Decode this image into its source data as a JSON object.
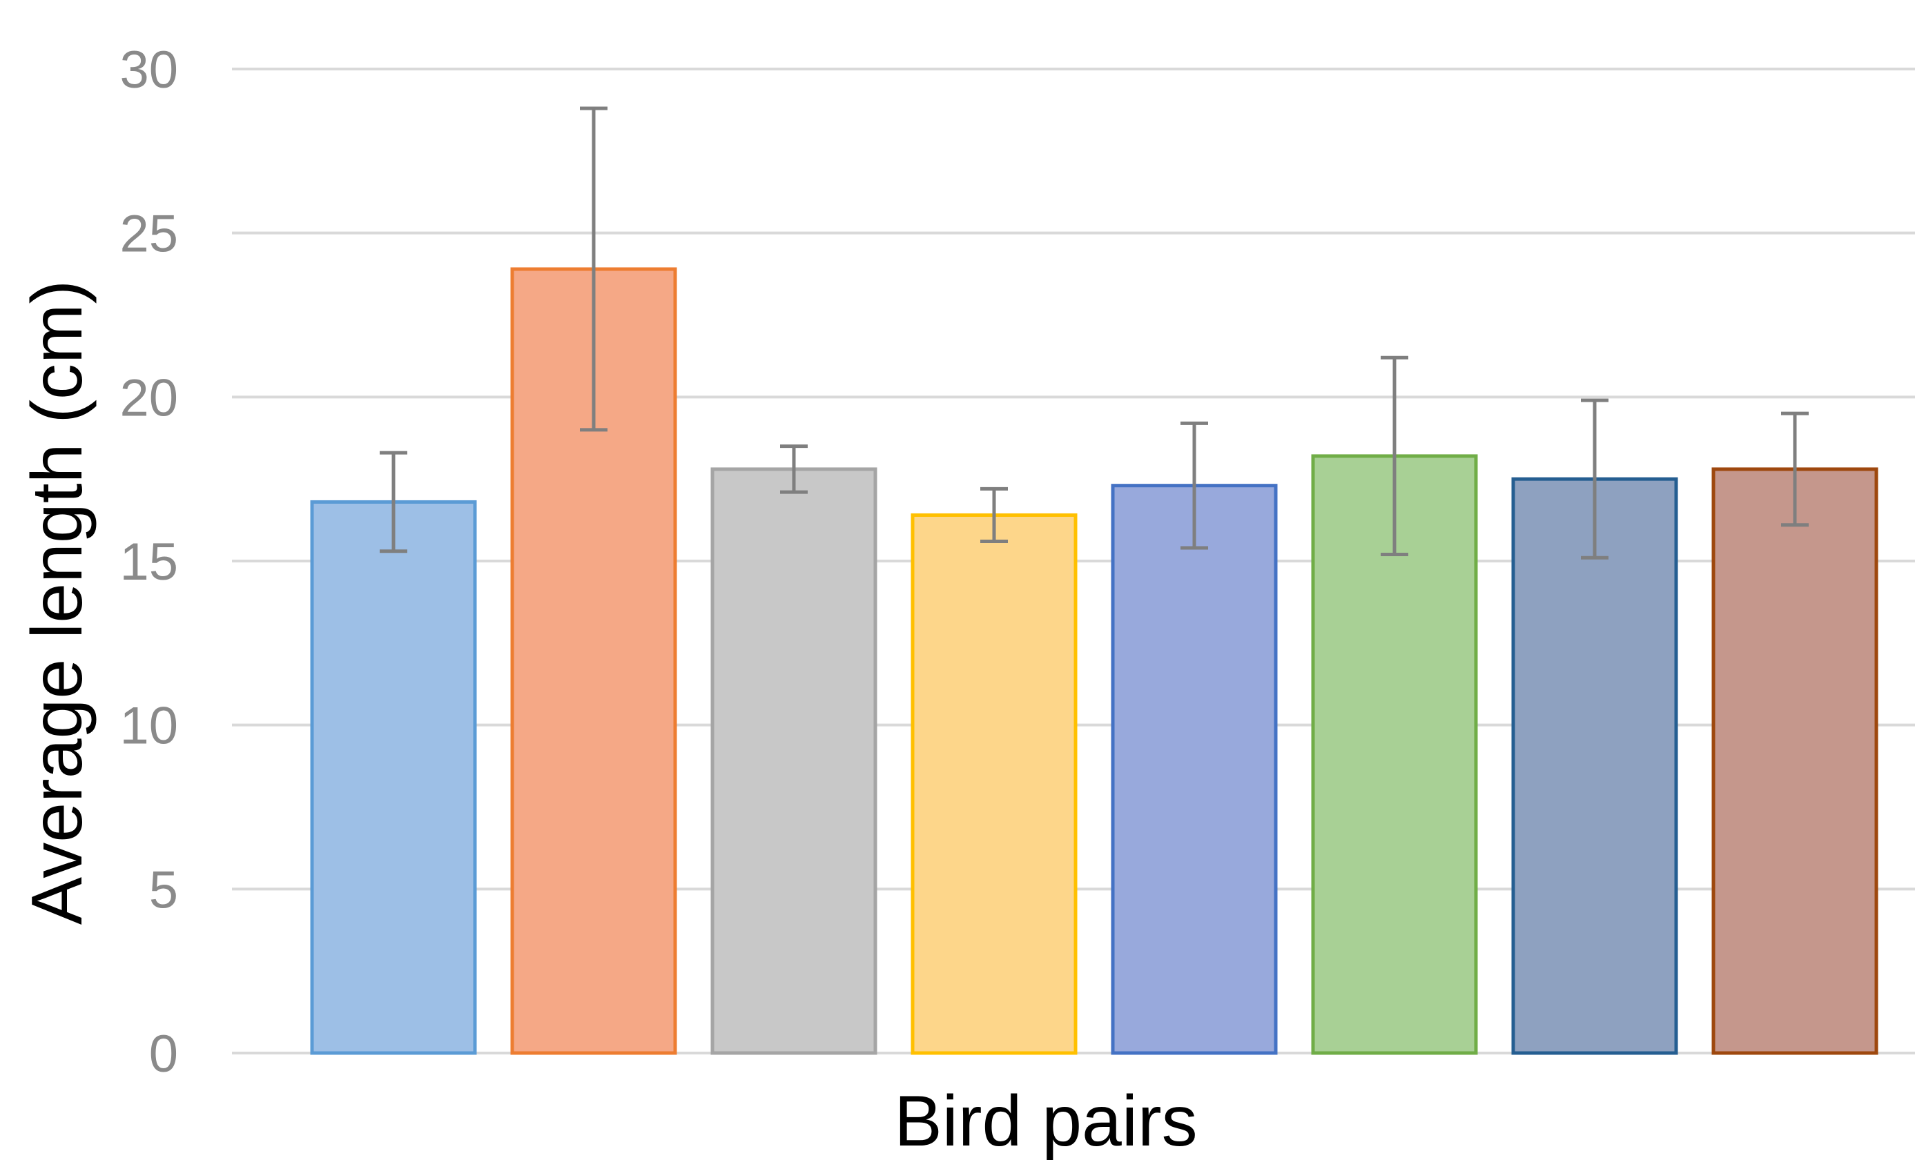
{
  "chart_data": {
    "type": "bar",
    "title": "",
    "xlabel": "Bird pairs",
    "ylabel": "Average length (cm)",
    "ylim": [
      0,
      30
    ],
    "yticks": [
      "0",
      "5",
      "10",
      "15",
      "20",
      "25",
      "30"
    ],
    "grid": true,
    "legend": "none",
    "series": [
      {
        "values": [
          16.8,
          23.9,
          17.8,
          16.4,
          17.3,
          18.2,
          17.5,
          17.8
        ],
        "error": [
          1.5,
          4.9,
          0.7,
          0.8,
          1.9,
          3.0,
          2.4,
          1.7
        ],
        "fill_colors": [
          "#9dbfe6",
          "#f5a886",
          "#c8c8c8",
          "#fdd68a",
          "#98a9dc",
          "#a8d095",
          "#8ea1c0",
          "#c5978c"
        ],
        "edge_colors": [
          "#5b9bd5",
          "#ed7d31",
          "#a5a5a5",
          "#ffc000",
          "#4472c4",
          "#70ad47",
          "#255e91",
          "#9e480e"
        ]
      }
    ],
    "error_bar_color": "#7f7f7f",
    "grid_color": "#d9d9d9"
  }
}
